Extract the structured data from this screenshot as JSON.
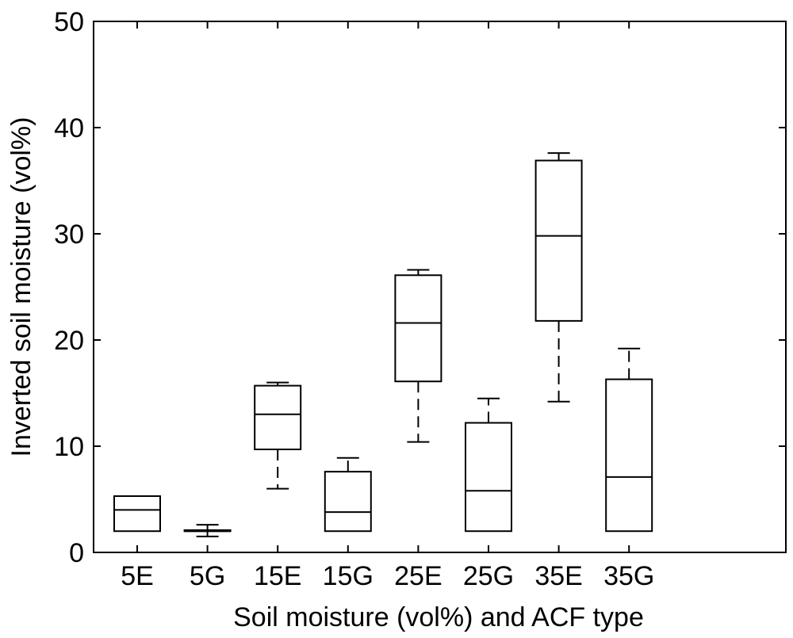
{
  "chart_data": {
    "type": "box",
    "title": "",
    "xlabel": "Soil moisture (vol%) and ACF type",
    "ylabel": "Inverted soil moisture (vol%)",
    "ylim": [
      0,
      50
    ],
    "yticks": [
      "0",
      "10",
      "20",
      "30",
      "40",
      "50"
    ],
    "categories": [
      "5E",
      "5G",
      "15E",
      "15G",
      "25E",
      "25G",
      "35E",
      "35G"
    ],
    "boxes": [
      {
        "min": 2.0,
        "q1": 2.0,
        "median": 4.0,
        "q3": 5.3,
        "max": 5.3
      },
      {
        "min": 1.5,
        "q1": 2.0,
        "median": 2.0,
        "q3": 2.1,
        "max": 2.6
      },
      {
        "min": 6.0,
        "q1": 9.7,
        "median": 13.0,
        "q3": 15.7,
        "max": 16.0
      },
      {
        "min": 2.0,
        "q1": 2.0,
        "median": 3.8,
        "q3": 7.6,
        "max": 8.9
      },
      {
        "min": 10.4,
        "q1": 16.1,
        "median": 21.6,
        "q3": 26.1,
        "max": 26.6
      },
      {
        "min": 2.0,
        "q1": 2.0,
        "median": 5.8,
        "q3": 12.2,
        "max": 14.5
      },
      {
        "min": 14.2,
        "q1": 21.8,
        "median": 29.8,
        "q3": 36.9,
        "max": 37.6
      },
      {
        "min": 2.0,
        "q1": 2.0,
        "median": 7.1,
        "q3": 16.3,
        "max": 19.2
      }
    ],
    "grid": false,
    "legend": "none"
  }
}
